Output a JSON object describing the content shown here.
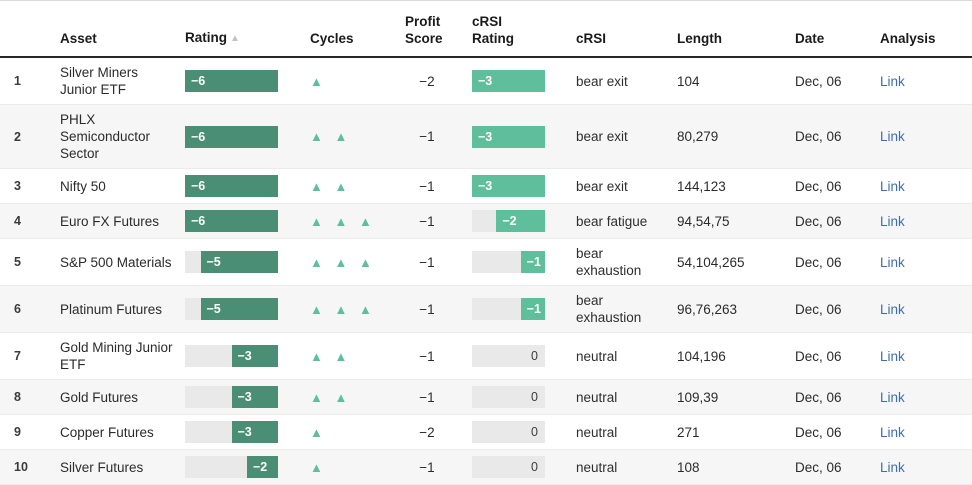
{
  "colors": {
    "rating_fill": "#4a8f75",
    "crsi_fill": "#5fbe9b",
    "cycle_triangle": "#5fbe9b",
    "bar_track": "#e9e9e9",
    "link": "#3d6eab"
  },
  "icons": {
    "cycle_up": "▲",
    "sort_asc": "▲"
  },
  "scales": {
    "rating_min": -6,
    "crsi_rating_min": -3
  },
  "header": {
    "index": "",
    "asset": "Asset",
    "rating": "Rating",
    "cycles": "Cycles",
    "profit_score": "Profit Score",
    "crsi_rating": "cRSI Rating",
    "crsi": "cRSI",
    "length": "Length",
    "date": "Date",
    "analysis": "Analysis"
  },
  "rows": [
    {
      "index": "1",
      "asset": "Silver Miners Junior ETF",
      "rating": -6,
      "rating_label": "−6",
      "cycles": 1,
      "profit_score": "−2",
      "crsi_rating": -3,
      "crsi_rating_label": "−3",
      "crsi": "bear exit",
      "length": "104",
      "date": "Dec, 06",
      "analysis": "Link"
    },
    {
      "index": "2",
      "asset": "PHLX Semiconductor Sector",
      "rating": -6,
      "rating_label": "−6",
      "cycles": 2,
      "profit_score": "−1",
      "crsi_rating": -3,
      "crsi_rating_label": "−3",
      "crsi": "bear exit",
      "length": "80,279",
      "date": "Dec, 06",
      "analysis": "Link"
    },
    {
      "index": "3",
      "asset": "Nifty 50",
      "rating": -6,
      "rating_label": "−6",
      "cycles": 2,
      "profit_score": "−1",
      "crsi_rating": -3,
      "crsi_rating_label": "−3",
      "crsi": "bear exit",
      "length": "144,123",
      "date": "Dec, 06",
      "analysis": "Link"
    },
    {
      "index": "4",
      "asset": "Euro FX Futures",
      "rating": -6,
      "rating_label": "−6",
      "cycles": 3,
      "profit_score": "−1",
      "crsi_rating": -2,
      "crsi_rating_label": "−2",
      "crsi": "bear fatigue",
      "length": "94,54,75",
      "date": "Dec, 06",
      "analysis": "Link"
    },
    {
      "index": "5",
      "asset": "S&P 500 Materials",
      "rating": -5,
      "rating_label": "−5",
      "cycles": 3,
      "profit_score": "−1",
      "crsi_rating": -1,
      "crsi_rating_label": "−1",
      "crsi": "bear exhaustion",
      "length": "54,104,265",
      "date": "Dec, 06",
      "analysis": "Link"
    },
    {
      "index": "6",
      "asset": "Platinum Futures",
      "rating": -5,
      "rating_label": "−5",
      "cycles": 3,
      "profit_score": "−1",
      "crsi_rating": -1,
      "crsi_rating_label": "−1",
      "crsi": "bear exhaustion",
      "length": "96,76,263",
      "date": "Dec, 06",
      "analysis": "Link"
    },
    {
      "index": "7",
      "asset": "Gold Mining Junior ETF",
      "rating": -3,
      "rating_label": "−3",
      "cycles": 2,
      "profit_score": "−1",
      "crsi_rating": 0,
      "crsi_rating_label": "0",
      "crsi": "neutral",
      "length": "104,196",
      "date": "Dec, 06",
      "analysis": "Link"
    },
    {
      "index": "8",
      "asset": "Gold Futures",
      "rating": -3,
      "rating_label": "−3",
      "cycles": 2,
      "profit_score": "−1",
      "crsi_rating": 0,
      "crsi_rating_label": "0",
      "crsi": "neutral",
      "length": "109,39",
      "date": "Dec, 06",
      "analysis": "Link"
    },
    {
      "index": "9",
      "asset": "Copper Futures",
      "rating": -3,
      "rating_label": "−3",
      "cycles": 1,
      "profit_score": "−2",
      "crsi_rating": 0,
      "crsi_rating_label": "0",
      "crsi": "neutral",
      "length": "271",
      "date": "Dec, 06",
      "analysis": "Link"
    },
    {
      "index": "10",
      "asset": "Silver Futures",
      "rating": -2,
      "rating_label": "−2",
      "cycles": 1,
      "profit_score": "−1",
      "crsi_rating": 0,
      "crsi_rating_label": "0",
      "crsi": "neutral",
      "length": "108",
      "date": "Dec, 06",
      "analysis": "Link"
    }
  ]
}
